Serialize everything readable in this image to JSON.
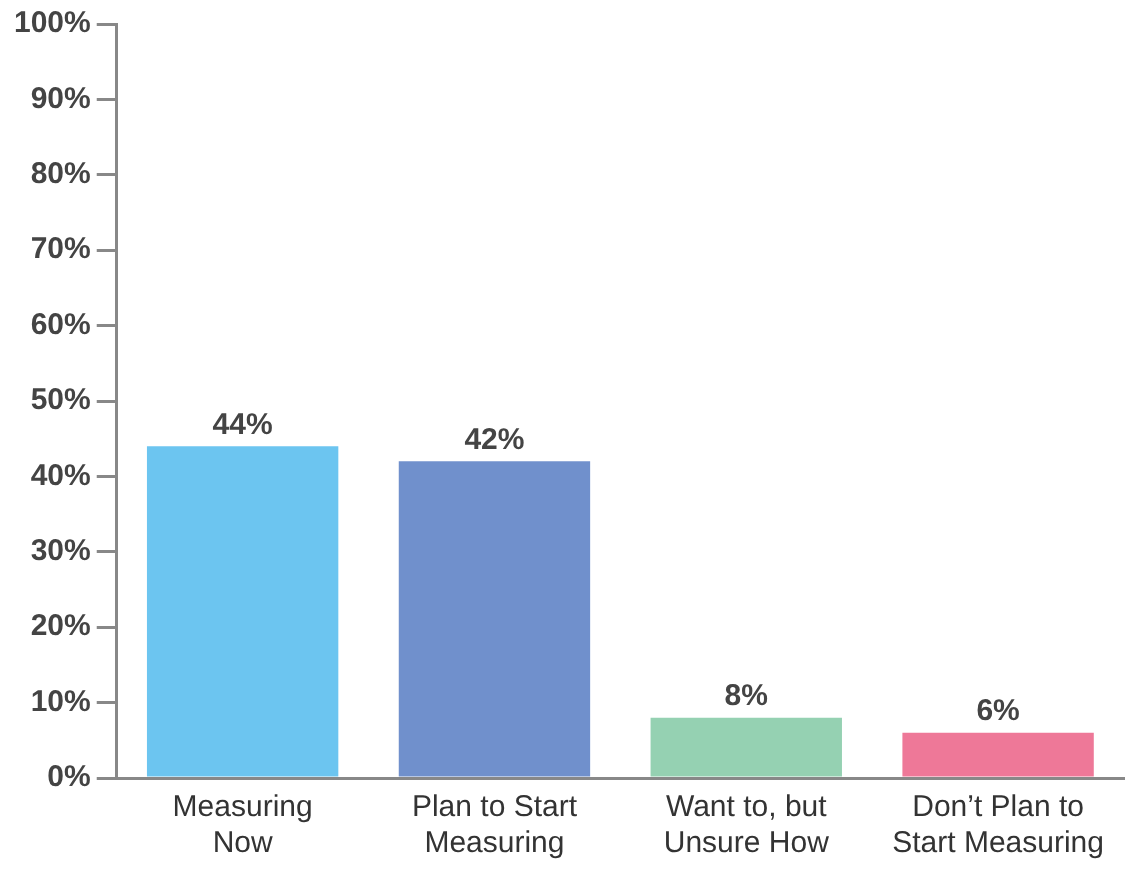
{
  "chart_data": {
    "type": "bar",
    "categories": [
      "Measuring Now",
      "Plan to Start Measuring",
      "Want to, but Unsure How",
      "Don’t Plan to Start Measuring"
    ],
    "values": [
      44,
      42,
      8,
      6
    ],
    "colors": [
      "#6cc5f0",
      "#7090cc",
      "#95d1b2",
      "#ee7898"
    ],
    "value_labels": [
      "44%",
      "42%",
      "8%",
      "6%"
    ],
    "ylim": [
      0,
      100
    ],
    "yticks": [
      {
        "value": 0,
        "label": "0%"
      },
      {
        "value": 10,
        "label": "10%"
      },
      {
        "value": 20,
        "label": "20%"
      },
      {
        "value": 30,
        "label": "30%"
      },
      {
        "value": 40,
        "label": "40%"
      },
      {
        "value": 50,
        "label": "50%"
      },
      {
        "value": 60,
        "label": "60%"
      },
      {
        "value": 70,
        "label": "70%"
      },
      {
        "value": 80,
        "label": "80%"
      },
      {
        "value": 90,
        "label": "90%"
      },
      {
        "value": 100,
        "label": "100%"
      }
    ],
    "grid": false,
    "legend": false
  }
}
